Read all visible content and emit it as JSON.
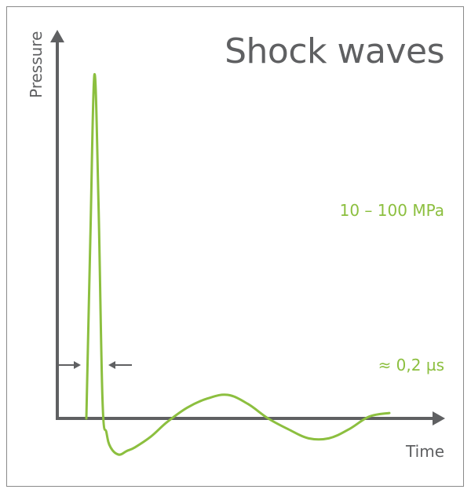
{
  "chart_data": {
    "type": "line",
    "title": "Shock waves",
    "xlabel": "Time",
    "ylabel": "Pressure",
    "annotations": {
      "peak_pressure": "10 – 100 MPa",
      "pulse_width": "≈ 0,2 µs"
    },
    "colors": {
      "curve": "#8cbf3f",
      "axis": "#5f6062",
      "frame": "#8a8a8a"
    },
    "series": [
      {
        "x": [
          0,
          0.05,
          0.1,
          0.15,
          0.2,
          0.25,
          0.3,
          0.4,
          0.5,
          0.6,
          0.8,
          1.0,
          1.25,
          1.5,
          1.75,
          2.0,
          2.25,
          2.5,
          2.75,
          3.0,
          3.25,
          3.5,
          3.75
        ],
        "y": [
          0,
          50,
          95,
          60,
          5,
          -4,
          -8,
          -10,
          -9,
          -8,
          -5,
          -1,
          3,
          5.5,
          6.5,
          4,
          0,
          -3,
          -5.5,
          -5.5,
          -3,
          0.5,
          1.5
        ]
      }
    ],
    "grid": false,
    "legend": "none"
  }
}
